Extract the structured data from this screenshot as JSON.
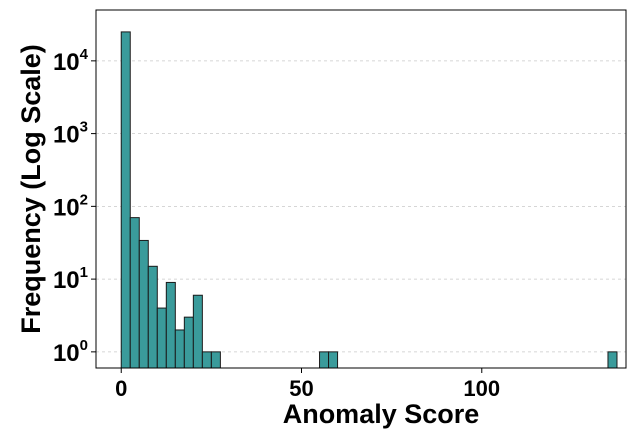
{
  "chart_data": {
    "type": "bar",
    "title": "",
    "xlabel": "Anomaly Score",
    "ylabel": "Frequency (Log Scale)",
    "y_scale": "log",
    "xlim": [
      -7,
      140
    ],
    "ylim": [
      0.6,
      50000
    ],
    "bin_width": 2.5,
    "grid": "horizontal dashed",
    "bar_color": "#3a9b9b",
    "bar_edge_color": "#1a1a1a",
    "x_ticks": [
      {
        "value": 0,
        "label": "0"
      },
      {
        "value": 50,
        "label": "50"
      },
      {
        "value": 100,
        "label": "100"
      }
    ],
    "y_ticks": [
      {
        "value": 1,
        "base": "10",
        "exp": "0"
      },
      {
        "value": 10,
        "base": "10",
        "exp": "1"
      },
      {
        "value": 100,
        "base": "10",
        "exp": "2"
      },
      {
        "value": 1000,
        "base": "10",
        "exp": "3"
      },
      {
        "value": 10000,
        "base": "10",
        "exp": "4"
      }
    ],
    "bins": [
      {
        "x0": 0,
        "count": 25000
      },
      {
        "x0": 2.5,
        "count": 70
      },
      {
        "x0": 5,
        "count": 34
      },
      {
        "x0": 7.5,
        "count": 15
      },
      {
        "x0": 10,
        "count": 4
      },
      {
        "x0": 12.5,
        "count": 9
      },
      {
        "x0": 15,
        "count": 2
      },
      {
        "x0": 17.5,
        "count": 3
      },
      {
        "x0": 20,
        "count": 6
      },
      {
        "x0": 22.5,
        "count": 1
      },
      {
        "x0": 25,
        "count": 1
      },
      {
        "x0": 55,
        "count": 1
      },
      {
        "x0": 57.5,
        "count": 1
      },
      {
        "x0": 135,
        "count": 1
      }
    ]
  }
}
